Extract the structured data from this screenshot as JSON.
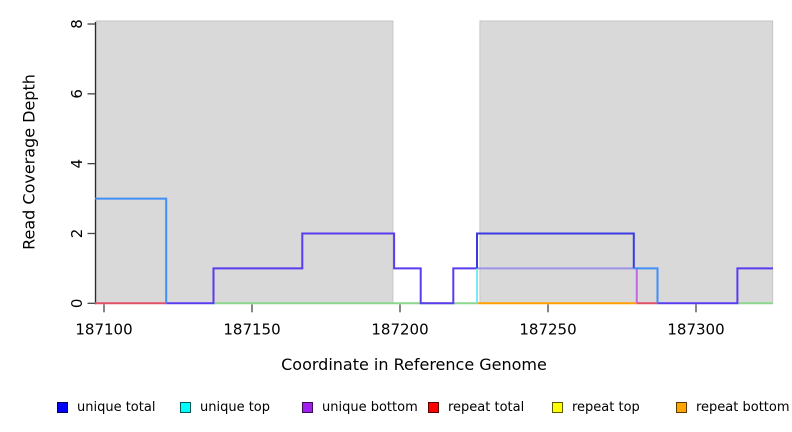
{
  "figure_title": "",
  "axes": {
    "xlabel": "Coordinate in Reference Genome",
    "ylabel": "Read Coverage Depth"
  },
  "legend": {
    "items": [
      {
        "label": "unique total",
        "color": "#0000ff"
      },
      {
        "label": "unique top",
        "color": "#00ffff"
      },
      {
        "label": "unique bottom",
        "color": "#a020f0"
      },
      {
        "label": "repeat total",
        "color": "#ff0000"
      },
      {
        "label": "repeat top",
        "color": "#ffff00"
      },
      {
        "label": "repeat bottom",
        "color": "#ffa500"
      }
    ]
  },
  "chart_data": {
    "type": "line",
    "title": "",
    "xlabel": "Coordinate in Reference Genome",
    "ylabel": "Read Coverage Depth",
    "x_ref": 187100,
    "xlim": [
      187097.3,
      187325.9
    ],
    "ylim": [
      0,
      8
    ],
    "grid": false,
    "x_ticks": [
      {
        "value": 187100,
        "label": "187100"
      },
      {
        "value": 187150,
        "label": "187150"
      },
      {
        "value": 187200,
        "label": "187200"
      },
      {
        "value": 187250,
        "label": "187250"
      },
      {
        "value": 187300,
        "label": "187300"
      }
    ],
    "y_ticks": [
      {
        "value": 0,
        "label": "0"
      },
      {
        "value": 2,
        "label": "2"
      },
      {
        "value": 4,
        "label": "4"
      },
      {
        "value": 6,
        "label": "6"
      },
      {
        "value": 8,
        "label": "8"
      }
    ],
    "shaded_regions": [
      {
        "x1": 187097.3,
        "x2": 187197.6,
        "fill": "#d9d9d9"
      },
      {
        "x1": 187227.0,
        "x2": 187325.9,
        "fill": "#d9d9d9"
      }
    ],
    "gap_region": {
      "x1": 187197.6,
      "x2": 187227.0,
      "fill": "#ffffff"
    },
    "series": [
      {
        "name": "unique total",
        "color": "#0000ff",
        "segments": [
          [
            187097,
            187121,
            3
          ],
          [
            187121,
            187137,
            0
          ],
          [
            187137,
            187167,
            1
          ],
          [
            187167,
            187198,
            2
          ],
          [
            187198,
            187207,
            1
          ],
          [
            187207,
            187218,
            0
          ],
          [
            187218,
            187226,
            1
          ],
          [
            187226,
            187279,
            2
          ],
          [
            187279,
            187287,
            1
          ],
          [
            187287,
            187314,
            0
          ],
          [
            187314,
            187326,
            1
          ]
        ]
      },
      {
        "name": "unique top",
        "color": "#00ffff",
        "segments": [
          [
            187097,
            187121,
            3
          ],
          [
            187121,
            187226,
            0
          ],
          [
            187226,
            187287,
            1
          ],
          [
            187287,
            187326,
            0
          ]
        ]
      },
      {
        "name": "unique bottom",
        "color": "#a020f0",
        "segments": [
          [
            187097,
            187137,
            0
          ],
          [
            187137,
            187167,
            1
          ],
          [
            187167,
            187198,
            2
          ],
          [
            187198,
            187207,
            1
          ],
          [
            187207,
            187218,
            0
          ],
          [
            187218,
            187279,
            1
          ],
          [
            187279,
            187314,
            0
          ],
          [
            187314,
            187326,
            1
          ]
        ]
      },
      {
        "name": "repeat total",
        "color": "#ff0000",
        "segments": [
          [
            187097,
            187326,
            0
          ]
        ]
      },
      {
        "name": "repeat top",
        "color": "#ffff00",
        "segments": [
          [
            187097,
            187326,
            0
          ]
        ]
      },
      {
        "name": "repeat bottom",
        "color": "#ffa500",
        "segments": [
          [
            187097,
            187326,
            0
          ]
        ]
      }
    ],
    "visible_lines": [
      {
        "name": "zero-line-green-mid",
        "color": "#8ed58e",
        "pts": [
          [
            187137,
            0
          ],
          [
            187226,
            0
          ]
        ]
      },
      {
        "name": "zero-line-green-right",
        "color": "#8ed58e",
        "pts": [
          [
            187314,
            0
          ],
          [
            187326,
            0
          ]
        ]
      },
      {
        "name": "zero-line-red-left",
        "color": "#e25065",
        "pts": [
          [
            187097,
            0
          ],
          [
            187121,
            0
          ]
        ]
      },
      {
        "name": "zero-line-red-right",
        "color": "#e25065",
        "pts": [
          [
            187280,
            0
          ],
          [
            187287,
            0
          ]
        ]
      },
      {
        "name": "zero-line-orange",
        "color": "#ffa000",
        "pts": [
          [
            187226,
            0
          ],
          [
            187280,
            0
          ]
        ]
      },
      {
        "name": "step-violet-left",
        "color": "#5b3bf0",
        "pts": [
          [
            187121,
            0
          ],
          [
            187137,
            0
          ],
          [
            187137,
            1
          ],
          [
            187167,
            1
          ],
          [
            187167,
            2
          ],
          [
            187198,
            2
          ],
          [
            187198,
            1
          ],
          [
            187207,
            1
          ],
          [
            187207,
            0
          ],
          [
            187218,
            0
          ],
          [
            187218,
            1
          ],
          [
            187226,
            1
          ]
        ]
      },
      {
        "name": "step-violet-right",
        "color": "#5b3bf0",
        "pts": [
          [
            187287,
            0
          ],
          [
            187314,
            0
          ],
          [
            187314,
            1
          ],
          [
            187326,
            1
          ]
        ]
      },
      {
        "name": "lavender-level1",
        "color": "#9d93e9",
        "pts": [
          [
            187226,
            1
          ],
          [
            187279,
            1
          ]
        ]
      },
      {
        "name": "purple-drop",
        "color": "#c667e2",
        "pts": [
          [
            187280,
            1
          ],
          [
            187280,
            0
          ]
        ]
      },
      {
        "name": "cyan-rise",
        "color": "#7ce9f2",
        "pts": [
          [
            187226,
            0
          ],
          [
            187226,
            1
          ]
        ]
      },
      {
        "name": "darkblue-level2",
        "color": "#3a3ae2",
        "pts": [
          [
            187226,
            1
          ],
          [
            187226,
            2
          ],
          [
            187279,
            2
          ],
          [
            187279,
            1
          ]
        ]
      },
      {
        "name": "azure-level3",
        "color": "#4090f7",
        "pts": [
          [
            187097,
            3
          ],
          [
            187121,
            3
          ],
          [
            187121,
            0
          ]
        ]
      },
      {
        "name": "azure-level1",
        "color": "#4090f7",
        "pts": [
          [
            187279,
            1
          ],
          [
            187287,
            1
          ],
          [
            187287,
            0
          ]
        ]
      }
    ],
    "style": {
      "band_fill": "#d9d9d9",
      "band_edge": "#c6c6c6",
      "axis_color": "#2a2a2a",
      "tick_color": "#454545",
      "text_color": "#000000"
    }
  }
}
